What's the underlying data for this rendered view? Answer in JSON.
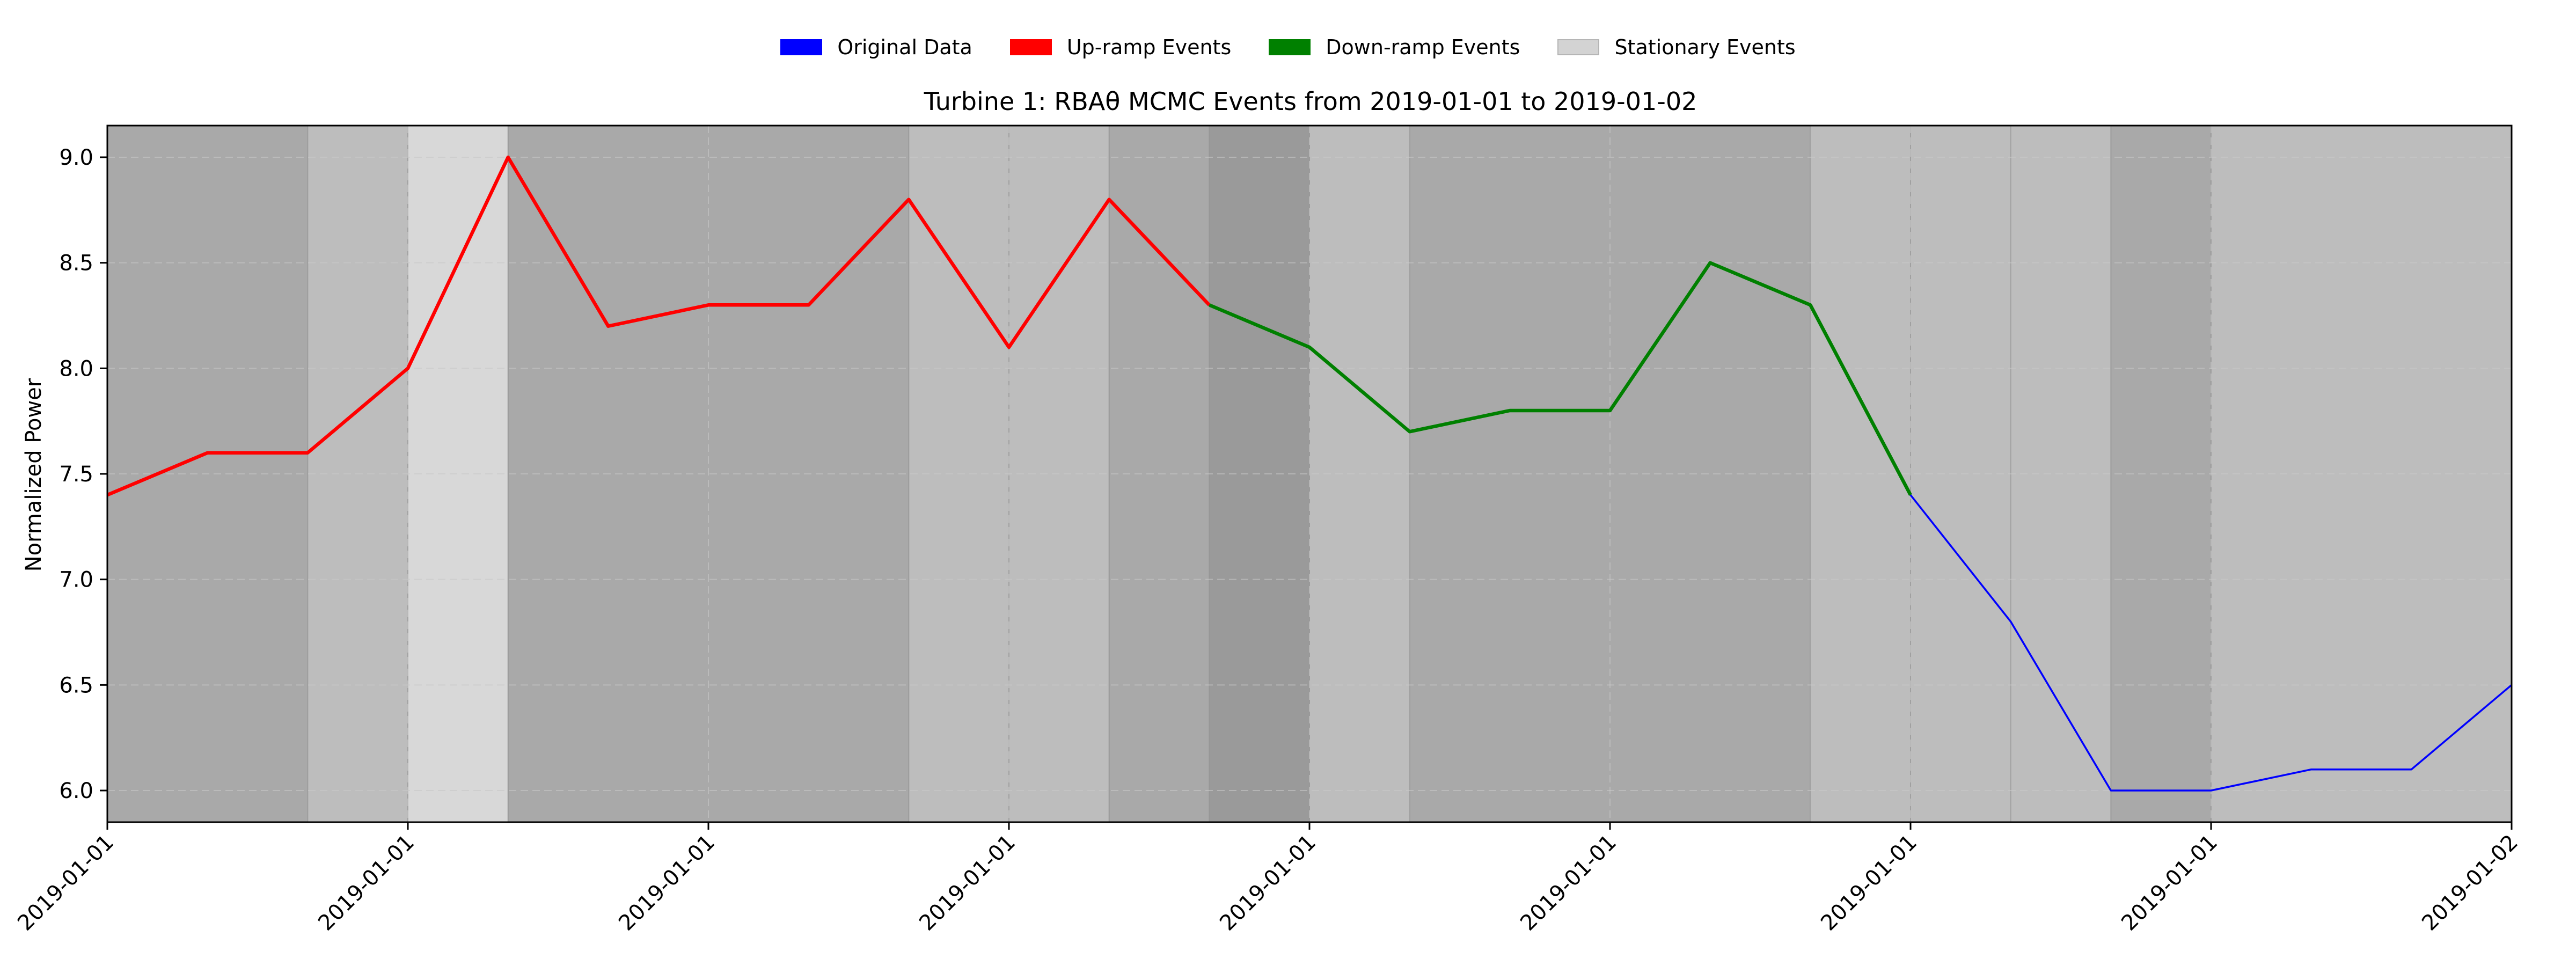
{
  "legend": {
    "items": [
      {
        "label": "Original Data",
        "color": "#0000ff"
      },
      {
        "label": "Up-ramp Events",
        "color": "#ff0000"
      },
      {
        "label": "Down-ramp Events",
        "color": "#008000"
      },
      {
        "label": "Stationary Events",
        "color": "#d3d3d3"
      }
    ]
  },
  "chart_data": {
    "type": "line",
    "title": "Turbine 1: RBAθ MCMC Events from 2019-01-01 to 2019-01-02",
    "xlabel": "",
    "ylabel": "Normalized Power",
    "ylim": [
      5.85,
      9.15
    ],
    "y_ticks": [
      6.0,
      6.5,
      7.0,
      7.5,
      8.0,
      8.5,
      9.0
    ],
    "x_ticks": [
      "2019-01-01",
      "2019-01-01",
      "2019-01-01",
      "2019-01-01",
      "2019-01-01",
      "2019-01-01",
      "2019-01-01",
      "2019-01-01",
      "2019-01-02"
    ],
    "grid": true,
    "legend_position": "top-center",
    "x_step_hours": 1,
    "x_tick_every_hours": 3,
    "series": [
      {
        "name": "Original Data",
        "color": "#0000ff",
        "values": [
          7.4,
          7.6,
          7.6,
          8.0,
          9.0,
          8.2,
          8.3,
          8.3,
          8.8,
          8.1,
          8.8,
          8.3,
          8.1,
          7.7,
          7.8,
          7.8,
          8.5,
          8.3,
          7.4,
          6.8,
          6.0,
          6.0,
          6.1,
          6.1,
          6.5
        ]
      },
      {
        "name": "Up-ramp Events",
        "color": "#ff0000",
        "start_hour": 0,
        "end_hour": 11
      },
      {
        "name": "Down-ramp Events",
        "color": "#008000",
        "start_hour": 11,
        "end_hour": 18
      }
    ],
    "shaded_events": [
      {
        "start_hour": 0,
        "end_hour": 2,
        "color": "#a9a9a9"
      },
      {
        "start_hour": 2,
        "end_hour": 3,
        "color": "#bdbdbd"
      },
      {
        "start_hour": 3,
        "end_hour": 4,
        "color": "#d8d8d8"
      },
      {
        "start_hour": 4,
        "end_hour": 8,
        "color": "#a9a9a9"
      },
      {
        "start_hour": 8,
        "end_hour": 9,
        "color": "#bdbdbd"
      },
      {
        "start_hour": 9,
        "end_hour": 10,
        "color": "#bdbdbd"
      },
      {
        "start_hour": 10,
        "end_hour": 11,
        "color": "#a9a9a9"
      },
      {
        "start_hour": 11,
        "end_hour": 12,
        "color": "#9a9a9a"
      },
      {
        "start_hour": 12,
        "end_hour": 13,
        "color": "#bdbdbd"
      },
      {
        "start_hour": 13,
        "end_hour": 17,
        "color": "#a9a9a9"
      },
      {
        "start_hour": 17,
        "end_hour": 18,
        "color": "#bdbdbd"
      },
      {
        "start_hour": 18,
        "end_hour": 19,
        "color": "#bdbdbd"
      },
      {
        "start_hour": 19,
        "end_hour": 20,
        "color": "#bdbdbd"
      },
      {
        "start_hour": 20,
        "end_hour": 21,
        "color": "#a9a9a9"
      },
      {
        "start_hour": 21,
        "end_hour": 24,
        "color": "#bdbdbd"
      }
    ]
  }
}
